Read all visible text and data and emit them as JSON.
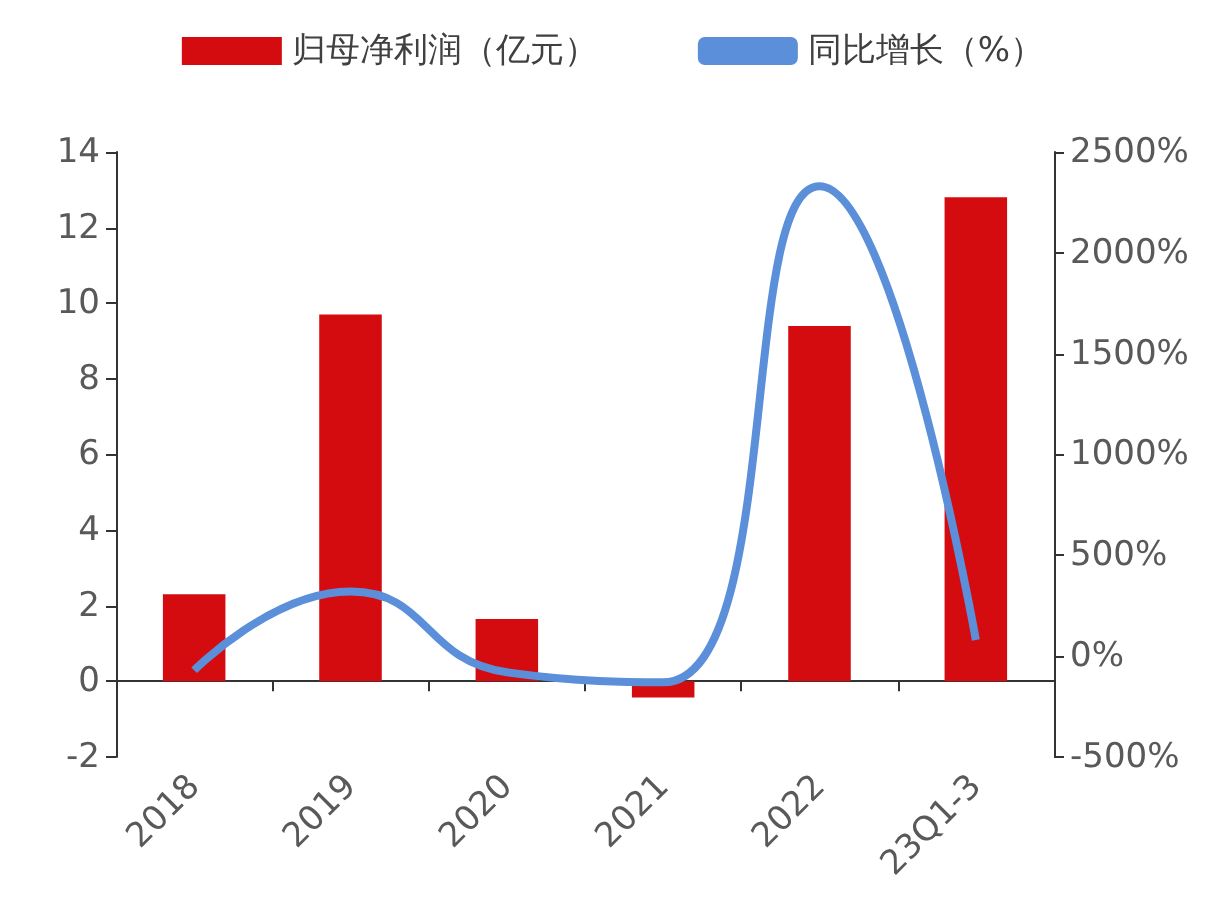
{
  "chart_data": {
    "type": "bar",
    "categories": [
      "2018",
      "2019",
      "2020",
      "2021",
      "2022",
      "23Q1-3"
    ],
    "series": [
      {
        "name": "归母净利润（亿元）",
        "color": "#d40c10",
        "values": [
          2.3,
          9.7,
          1.65,
          -0.43,
          9.4,
          12.8
        ]
      },
      {
        "name": "同比增长（%）",
        "type": "line",
        "axis": "y2",
        "color": "#5b8fd9",
        "values": [
          -70,
          320,
          -80,
          -130,
          2330,
          80
        ]
      }
    ],
    "ylim": [
      -2,
      14
    ],
    "yticks": [
      -2,
      0,
      2,
      4,
      6,
      8,
      10,
      12,
      14
    ],
    "y2lim": [
      -500,
      2500
    ],
    "y2ticks": [
      {
        "value": -500,
        "label": "-500%"
      },
      {
        "value": 0,
        "label": "0%"
      },
      {
        "value": 500,
        "label": "500%"
      },
      {
        "value": 1000,
        "label": "1000%"
      },
      {
        "value": 1500,
        "label": "1500%"
      },
      {
        "value": 2000,
        "label": "2000%"
      },
      {
        "value": 2500,
        "label": "2500%"
      }
    ],
    "legend": "top",
    "marker": "none"
  }
}
